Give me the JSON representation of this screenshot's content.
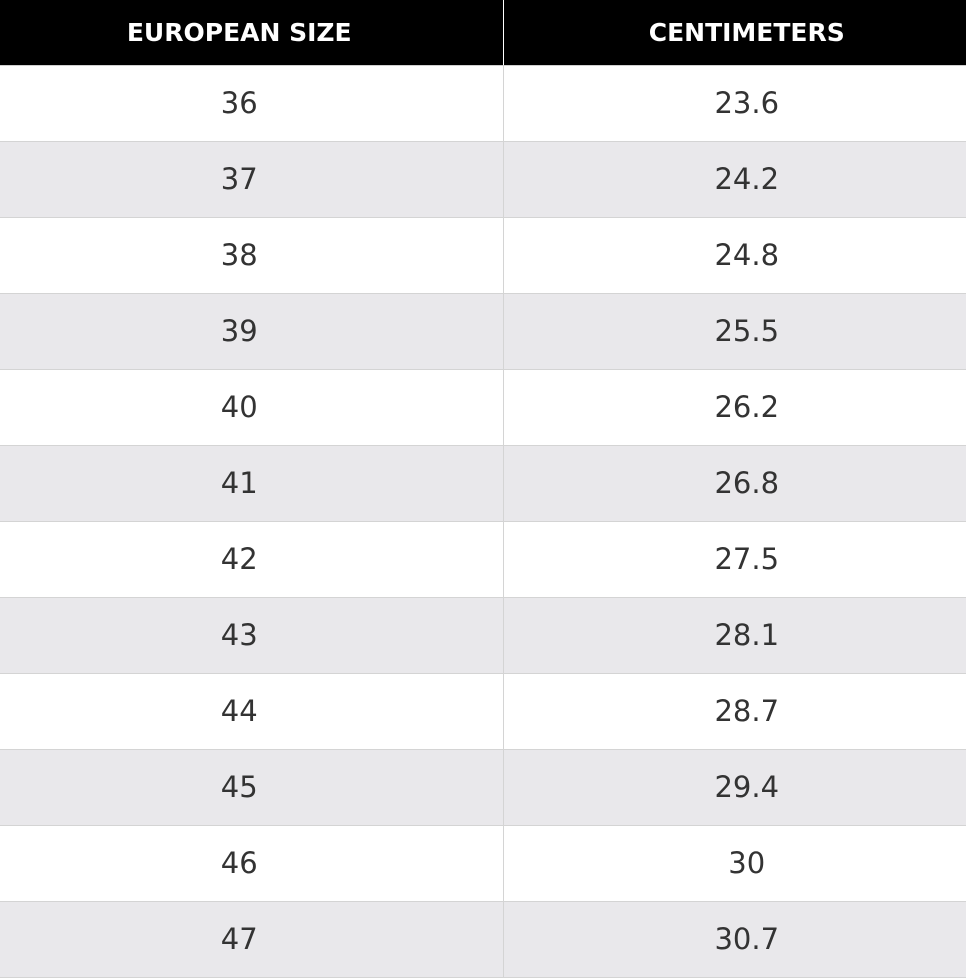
{
  "table": {
    "headers": [
      "EUROPEAN SIZE",
      "CENTIMETERS"
    ],
    "rows": [
      [
        "36",
        "23.6"
      ],
      [
        "37",
        "24.2"
      ],
      [
        "38",
        "24.8"
      ],
      [
        "39",
        "25.5"
      ],
      [
        "40",
        "26.2"
      ],
      [
        "41",
        "26.8"
      ],
      [
        "42",
        "27.5"
      ],
      [
        "43",
        "28.1"
      ],
      [
        "44",
        "28.7"
      ],
      [
        "45",
        "29.4"
      ],
      [
        "46",
        "30"
      ],
      [
        "47",
        "30.7"
      ]
    ]
  },
  "colors": {
    "header_bg": "#000000",
    "header_text": "#ffffff",
    "row_alt_bg": "#e9e8eb",
    "cell_text": "#333333",
    "border": "#d4d4d4"
  }
}
